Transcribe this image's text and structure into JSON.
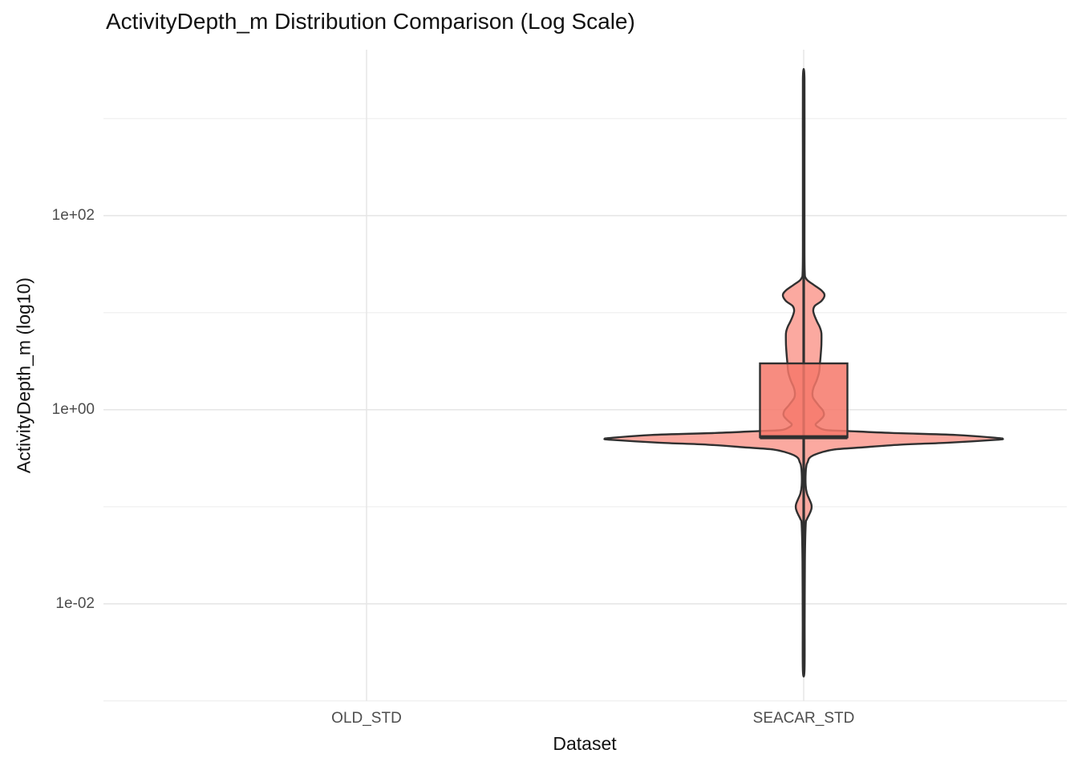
{
  "figure": {
    "title": "ActivityDepth_m Distribution Comparison (Log Scale)",
    "x_axis_title": "Dataset",
    "y_axis_title": "ActivityDepth_m (log10)"
  },
  "chart_data": {
    "type": "violin",
    "title": "ActivityDepth_m Distribution Comparison (Log Scale)",
    "xlabel": "Dataset",
    "ylabel": "ActivityDepth_m (log10)",
    "y_scale": "log10",
    "grid": "on",
    "legend": "none",
    "y_axis": {
      "major_ticks": [
        {
          "label": "1e+02",
          "log10": 2
        },
        {
          "label": "1e+00",
          "log10": 0
        },
        {
          "label": "1e-02",
          "log10": -2
        }
      ],
      "minor_gridlines_log10": [
        3,
        1,
        -1,
        -3
      ],
      "range_log10": [
        -3.0,
        3.71
      ]
    },
    "categories": [
      "OLD_STD",
      "SEACAR_STD"
    ],
    "series": [
      {
        "name": "OLD_STD",
        "has_data": false
      },
      {
        "name": "SEACAR_STD",
        "has_data": true,
        "boxplot": {
          "median": 0.52,
          "q1": 0.52,
          "q3": 3.0,
          "min": 0.002,
          "max": 2540
        },
        "violin_value_range": [
          0.002,
          2540
        ],
        "density_peaks_m": [
          0.5,
          0.1,
          15,
          2
        ],
        "density_profile_log10_relwidth": [
          [
            3.41,
            0.004
          ],
          [
            2.6,
            0.004
          ],
          [
            1.9,
            0.004
          ],
          [
            1.45,
            0.005
          ],
          [
            1.35,
            0.012
          ],
          [
            1.29,
            0.048
          ],
          [
            1.23,
            0.089
          ],
          [
            1.18,
            0.105
          ],
          [
            1.12,
            0.089
          ],
          [
            1.07,
            0.056
          ],
          [
            1.02,
            0.048
          ],
          [
            0.96,
            0.056
          ],
          [
            0.9,
            0.069
          ],
          [
            0.85,
            0.081
          ],
          [
            0.79,
            0.089
          ],
          [
            0.67,
            0.089
          ],
          [
            0.55,
            0.085
          ],
          [
            0.46,
            0.081
          ],
          [
            0.38,
            0.077
          ],
          [
            0.3,
            0.065
          ],
          [
            0.23,
            0.05
          ],
          [
            0.17,
            0.044
          ],
          [
            0.12,
            0.048
          ],
          [
            0.05,
            0.073
          ],
          [
            -0.01,
            0.097
          ],
          [
            -0.06,
            0.101
          ],
          [
            -0.11,
            0.081
          ],
          [
            -0.15,
            0.06
          ],
          [
            -0.18,
            0.073
          ],
          [
            -0.21,
            0.113
          ],
          [
            -0.22,
            0.222
          ],
          [
            -0.24,
            0.444
          ],
          [
            -0.26,
            0.766
          ],
          [
            -0.29,
            0.968
          ],
          [
            -0.3,
            1.0
          ],
          [
            -0.31,
            0.968
          ],
          [
            -0.34,
            0.726
          ],
          [
            -0.36,
            0.484
          ],
          [
            -0.39,
            0.282
          ],
          [
            -0.41,
            0.153
          ],
          [
            -0.44,
            0.089
          ],
          [
            -0.47,
            0.048
          ],
          [
            -0.5,
            0.028
          ],
          [
            -0.54,
            0.02
          ],
          [
            -0.57,
            0.014
          ],
          [
            -0.65,
            0.01
          ],
          [
            -0.78,
            0.01
          ],
          [
            -0.86,
            0.016
          ],
          [
            -0.92,
            0.028
          ],
          [
            -0.97,
            0.038
          ],
          [
            -1.0,
            0.04
          ],
          [
            -1.03,
            0.038
          ],
          [
            -1.08,
            0.028
          ],
          [
            -1.13,
            0.016
          ],
          [
            -1.19,
            0.01
          ],
          [
            -1.56,
            0.006
          ],
          [
            -2.22,
            0.005
          ],
          [
            -2.69,
            0.004
          ]
        ]
      }
    ],
    "style": {
      "violin_fill": "#FBA9A0",
      "box_fill_rgba": "rgba(246,120,106,0.85)",
      "outline_color": "#303030",
      "grid_major_color": "#E7E7E7",
      "grid_minor_color": "#F1F1F1",
      "tick_label_color": "#4D4D4D",
      "title_color": "#111111",
      "background": "#FFFFFF"
    }
  }
}
